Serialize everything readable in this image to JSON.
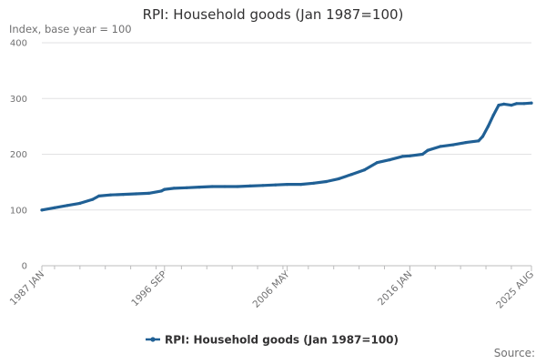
{
  "chart_data": {
    "type": "line",
    "title": "RPI: Household goods (Jan 1987=100)",
    "ylabel": "Index, base year = 100",
    "xlabel": "",
    "source": "Source:",
    "ylim": [
      0,
      400
    ],
    "yticks": [
      0,
      100,
      200,
      300,
      400
    ],
    "x_range": [
      "1987-01",
      "2025-08"
    ],
    "x_tick_labels": [
      {
        "label": "1987 JAN",
        "date": "1987-01"
      },
      {
        "label": "1996 SEP",
        "date": "1996-09"
      },
      {
        "label": "2006 MAY",
        "date": "2006-05"
      },
      {
        "label": "2016 JAN",
        "date": "2016-01"
      },
      {
        "label": "2025 AUG",
        "date": "2025-08"
      }
    ],
    "grid": true,
    "legend_position": "bottom",
    "color": "#206095",
    "series": [
      {
        "name": "RPI: Household goods (Jan 1987=100)",
        "points": [
          [
            "1987-01",
            100
          ],
          [
            "1988-01",
            104
          ],
          [
            "1989-01",
            108
          ],
          [
            "1990-01",
            112
          ],
          [
            "1991-01",
            119
          ],
          [
            "1991-07",
            125
          ],
          [
            "1992-06",
            127
          ],
          [
            "1993-06",
            128
          ],
          [
            "1994-06",
            129
          ],
          [
            "1995-06",
            130
          ],
          [
            "1996-06",
            134
          ],
          [
            "1996-09",
            137
          ],
          [
            "1997-06",
            139
          ],
          [
            "1998-06",
            140
          ],
          [
            "1999-06",
            141
          ],
          [
            "2000-06",
            142
          ],
          [
            "2001-06",
            142
          ],
          [
            "2002-06",
            142
          ],
          [
            "2003-06",
            143
          ],
          [
            "2004-06",
            144
          ],
          [
            "2005-06",
            145
          ],
          [
            "2006-05",
            146
          ],
          [
            "2007-06",
            146
          ],
          [
            "2008-06",
            148
          ],
          [
            "2009-06",
            151
          ],
          [
            "2010-06",
            156
          ],
          [
            "2011-06",
            164
          ],
          [
            "2012-06",
            172
          ],
          [
            "2013-06",
            185
          ],
          [
            "2014-06",
            190
          ],
          [
            "2015-06",
            196
          ],
          [
            "2016-01",
            197
          ],
          [
            "2017-01",
            200
          ],
          [
            "2017-06",
            207
          ],
          [
            "2018-06",
            214
          ],
          [
            "2019-06",
            217
          ],
          [
            "2020-06",
            221
          ],
          [
            "2021-06",
            224
          ],
          [
            "2021-10",
            232
          ],
          [
            "2022-03",
            250
          ],
          [
            "2022-08",
            270
          ],
          [
            "2023-01",
            288
          ],
          [
            "2023-06",
            290
          ],
          [
            "2024-01",
            288
          ],
          [
            "2024-06",
            291
          ],
          [
            "2025-01",
            291
          ],
          [
            "2025-08",
            292
          ]
        ]
      }
    ]
  }
}
